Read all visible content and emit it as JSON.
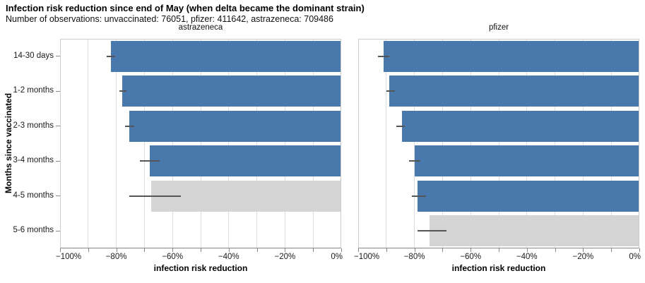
{
  "chart_data": {
    "type": "bar",
    "orientation": "horizontal",
    "title": "Infection risk reduction since end of May (when delta became the dominant strain)",
    "subtitle": "Number of observations: unvaccinated: 76051, pfizer: 411642, astrazeneca: 709486",
    "xlabel": "infection risk reduction",
    "ylabel": "Months since vaccinated",
    "xlim": [
      -100,
      0
    ],
    "grid": true,
    "legend": "none",
    "categories": [
      "14-30 days",
      "1-2 months",
      "2-3 months",
      "3-4 months",
      "4-5 months",
      "5-6 months"
    ],
    "xtick_values": [
      -100,
      -80,
      -60,
      -40,
      -20,
      0
    ],
    "xtick_labels": [
      "−100%",
      "−80%",
      "−60%",
      "−40%",
      "−20%",
      "0%"
    ],
    "minor_tick_step": 10,
    "facets": [
      {
        "title": "astrazeneca",
        "series_name": "astrazeneca",
        "values": [
          -82,
          -78,
          -75.5,
          -68,
          -67.5,
          null
        ],
        "ci": [
          [
            -83.5,
            -80.5
          ],
          [
            -79,
            -76.5
          ],
          [
            -77,
            -73.5
          ],
          [
            -71.5,
            -64.5
          ],
          [
            -75.5,
            -57
          ],
          null
        ],
        "bar_colors": [
          "blue",
          "blue",
          "blue",
          "blue",
          "gray",
          null
        ]
      },
      {
        "title": "pfizer",
        "series_name": "pfizer",
        "values": [
          -91,
          -89,
          -84.5,
          -80,
          -79,
          -74.5
        ],
        "ci": [
          [
            -93,
            -89
          ],
          [
            -90,
            -87
          ],
          [
            -86.5,
            -83.5
          ],
          [
            -82,
            -78
          ],
          [
            -81,
            -76
          ],
          [
            -79,
            -68.5
          ]
        ],
        "bar_colors": [
          "blue",
          "blue",
          "blue",
          "blue",
          "blue",
          "gray"
        ]
      }
    ],
    "colors": {
      "blue": "#4878ac",
      "gray": "#d4d4d4",
      "error": "#555555",
      "grid": "#dddddd",
      "axis": "#888888"
    }
  }
}
